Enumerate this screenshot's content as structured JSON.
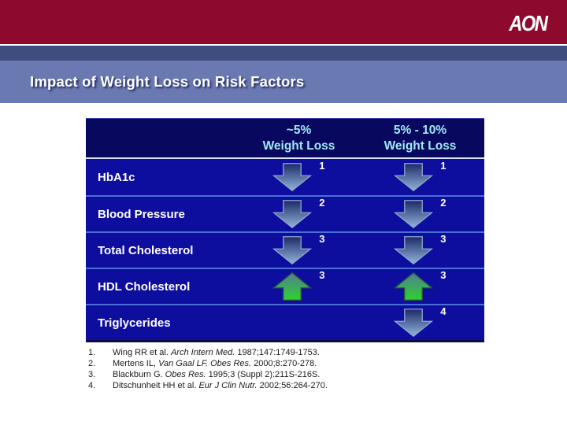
{
  "banner": {
    "logo_text": "AON"
  },
  "header": {
    "title": "Impact of Weight Loss on Risk Factors"
  },
  "table": {
    "columns": [
      {
        "line1": "~5%",
        "line2": "Weight Loss"
      },
      {
        "line1": "5% - 10%",
        "line2": "Weight Loss"
      }
    ],
    "rows": [
      {
        "label": "HbA1c",
        "col1": {
          "dir": "down",
          "ref": "1"
        },
        "col2": {
          "dir": "down",
          "ref": "1"
        }
      },
      {
        "label": "Blood Pressure",
        "col1": {
          "dir": "down",
          "ref": "2"
        },
        "col2": {
          "dir": "down",
          "ref": "2"
        }
      },
      {
        "label": "Total Cholesterol",
        "col1": {
          "dir": "down",
          "ref": "3"
        },
        "col2": {
          "dir": "down",
          "ref": "3"
        }
      },
      {
        "label": "HDL Cholesterol",
        "col1": {
          "dir": "up",
          "ref": "3"
        },
        "col2": {
          "dir": "up",
          "ref": "3"
        }
      },
      {
        "label": "Triglycerides",
        "col1": null,
        "col2": {
          "dir": "down",
          "ref": "4"
        }
      }
    ]
  },
  "icons": {
    "down": "down-arrow-icon",
    "up": "up-arrow-icon"
  },
  "footnotes": [
    {
      "num": "1.",
      "segments": [
        {
          "t": "Wing RR et al. ",
          "i": false
        },
        {
          "t": "Arch Intern Med.",
          "i": true
        },
        {
          "t": " 1987;147:1749-1753.",
          "i": false
        }
      ]
    },
    {
      "num": "2.",
      "segments": [
        {
          "t": "Mertens IL, ",
          "i": false
        },
        {
          "t": "Van Gaal LF. Obes Res.",
          "i": true
        },
        {
          "t": " 2000;8:270-278.",
          "i": false
        }
      ]
    },
    {
      "num": "3.",
      "segments": [
        {
          "t": "Blackburn G. ",
          "i": false
        },
        {
          "t": "Obes Res.",
          "i": true
        },
        {
          "t": " 1995;3 (Suppl 2):211S-216S.",
          "i": false
        }
      ]
    },
    {
      "num": "4.",
      "segments": [
        {
          "t": "Ditschunheit HH et al. ",
          "i": false
        },
        {
          "t": "Eur J Clin Nutr.",
          "i": true
        },
        {
          "t": " 2002;56:264-270.",
          "i": false
        }
      ]
    }
  ],
  "colors": {
    "banner_maroon": "#8e0a2d",
    "accent_band_slate": "#3f4d7e",
    "title_band_blue": "#6b79b2",
    "table_header_navy": "#08085f",
    "table_row_blue": "#0e0e9e",
    "row_separator_blue": "#4a6fd6",
    "header_text_cyan": "#9fe9f6",
    "down_arrow_top": "#1b2a66",
    "down_arrow_bottom": "#93b4da",
    "up_arrow_top": "#527e95",
    "up_arrow_bottom": "#2ed12e"
  }
}
